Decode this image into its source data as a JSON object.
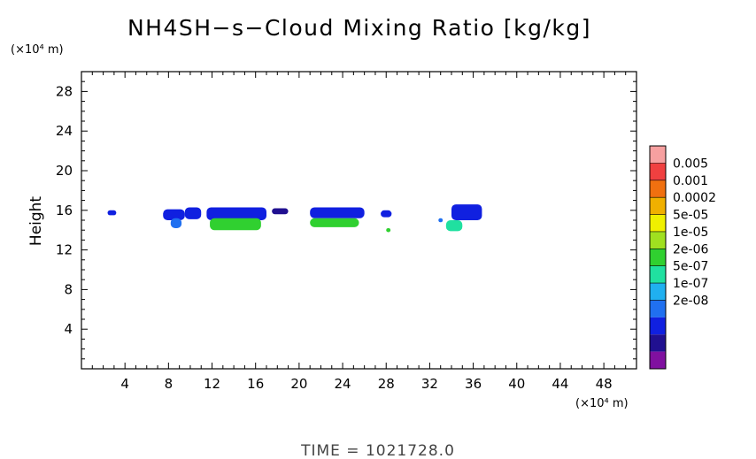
{
  "chart_data": {
    "type": "heatmap",
    "title": "NH4SH−s−Cloud Mixing Ratio [kg/kg]",
    "ylabel": "Height",
    "xlabel": "",
    "x_unit": "(×10⁴ m)",
    "y_unit": "(×10⁴ m)",
    "footer": "TIME  =  1021728.0",
    "xlim": [
      0,
      51
    ],
    "ylim": [
      0,
      30
    ],
    "x_ticks": [
      "4",
      "8",
      "12",
      "16",
      "20",
      "24",
      "28",
      "32",
      "36",
      "40",
      "44",
      "48"
    ],
    "x_tick_values": [
      4,
      8,
      12,
      16,
      20,
      24,
      28,
      32,
      36,
      40,
      44,
      48
    ],
    "y_ticks": [
      "4",
      "8",
      "12",
      "16",
      "20",
      "24",
      "28"
    ],
    "y_tick_values": [
      4,
      8,
      12,
      16,
      20,
      24,
      28
    ],
    "colorbar": {
      "labels": [
        "0.005",
        "0.001",
        "0.0002",
        "5e-05",
        "1e-05",
        "2e-06",
        "5e-07",
        "1e-07",
        "2e-08"
      ],
      "colors": [
        "#f7a0a0",
        "#f04040",
        "#f07010",
        "#f0b000",
        "#f0f000",
        "#a0e020",
        "#30d030",
        "#20e0a0",
        "#20b0f0",
        "#2070f0",
        "#1020e0",
        "#201090",
        "#8010a0"
      ]
    },
    "regions": [
      {
        "x": [
          2.4,
          3.2
        ],
        "y": [
          15.5,
          16.0
        ],
        "level": 10
      },
      {
        "x": [
          7.5,
          9.5
        ],
        "y": [
          15.0,
          16.1
        ],
        "level": 10
      },
      {
        "x": [
          8.2,
          9.2
        ],
        "y": [
          14.2,
          15.2
        ],
        "level": 9
      },
      {
        "x": [
          9.5,
          11.0
        ],
        "y": [
          15.1,
          16.3
        ],
        "level": 10
      },
      {
        "x": [
          11.5,
          17.0
        ],
        "y": [
          15.0,
          16.3
        ],
        "level": 10
      },
      {
        "x": [
          11.8,
          16.5
        ],
        "y": [
          14.0,
          15.2
        ],
        "level": 6
      },
      {
        "x": [
          17.5,
          19.0
        ],
        "y": [
          15.6,
          16.2
        ],
        "level": 11
      },
      {
        "x": [
          21.0,
          26.0
        ],
        "y": [
          15.2,
          16.3
        ],
        "level": 10
      },
      {
        "x": [
          21.0,
          25.5
        ],
        "y": [
          14.3,
          15.2
        ],
        "level": 6
      },
      {
        "x": [
          27.5,
          28.5
        ],
        "y": [
          15.3,
          16.0
        ],
        "level": 10
      },
      {
        "x": [
          28.0,
          28.4
        ],
        "y": [
          13.8,
          14.2
        ],
        "level": 6
      },
      {
        "x": [
          33.5,
          35.0
        ],
        "y": [
          13.9,
          15.0
        ],
        "level": 7
      },
      {
        "x": [
          34.0,
          36.8
        ],
        "y": [
          15.0,
          16.6
        ],
        "level": 10
      },
      {
        "x": [
          32.8,
          33.2
        ],
        "y": [
          14.8,
          15.2
        ],
        "level": 9
      }
    ]
  }
}
